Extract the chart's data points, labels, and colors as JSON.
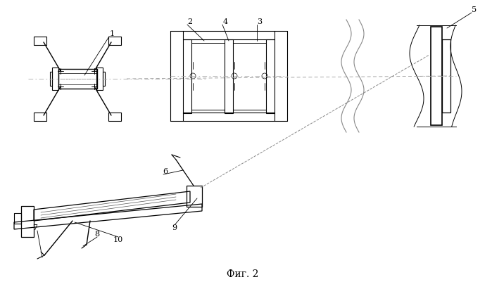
{
  "title": "Фиг. 2",
  "bg_color": "#ffffff",
  "line_color": "#000000",
  "fig_width": 6.99,
  "fig_height": 4.01,
  "dpi": 100
}
